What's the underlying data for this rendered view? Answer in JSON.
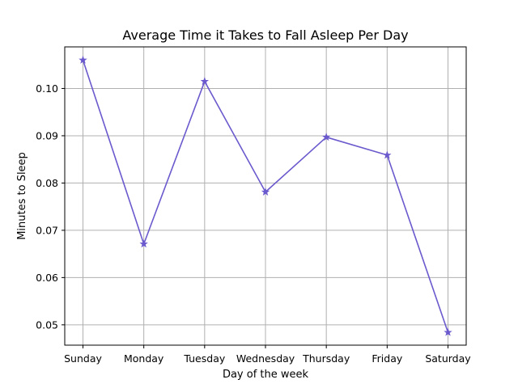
{
  "chart_data": {
    "type": "line",
    "title": "Average Time it Takes to Fall Asleep Per Day",
    "xlabel": "Day of the week",
    "ylabel": "Minutes to Sleep",
    "categories": [
      "Sunday",
      "Monday",
      "Tuesday",
      "Wednesday",
      "Thursday",
      "Friday",
      "Saturday"
    ],
    "series": [
      {
        "values": [
          0.106,
          0.0671,
          0.1015,
          0.0781,
          0.0897,
          0.0859,
          0.0484
        ],
        "color": "#6a5acd",
        "marker": "star"
      }
    ],
    "ylim": [
      0.0457,
      0.1088
    ],
    "yticks": [
      "0.05",
      "0.06",
      "0.07",
      "0.08",
      "0.09",
      "0.10"
    ],
    "grid": true,
    "legend": "none"
  }
}
